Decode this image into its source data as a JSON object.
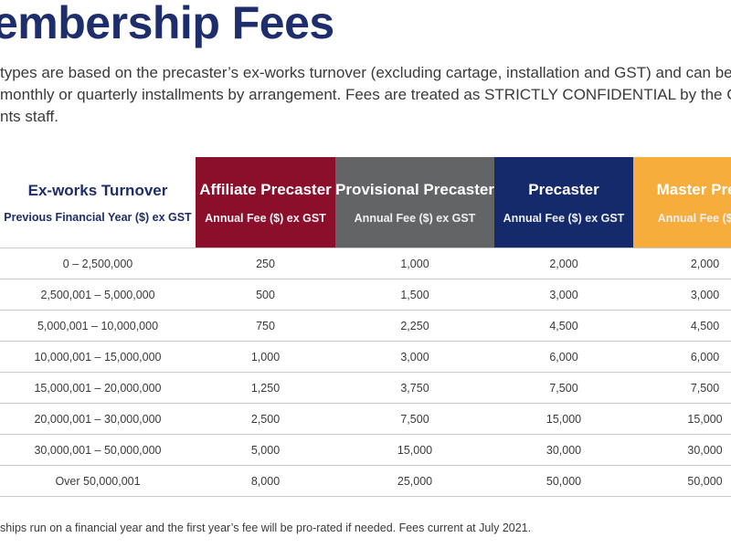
{
  "title": "embership Fees",
  "intro": {
    "line1": "types are based on the precaster’s ex-works turnover (excluding cartage, installation and GST) and can be p",
    "line2": "monthly or quarterly installments by arrangement. Fees are treated as STRICTLY CONFIDENTIAL by the CEO",
    "line3": "nts staff."
  },
  "table": {
    "headers": [
      {
        "title": "Ex-works Turnover",
        "sub": "Previous Financial Year ($) ex GST",
        "color": "#ffffff"
      },
      {
        "title": "Affiliate Precaster",
        "sub": "Annual Fee ($) ex GST",
        "color": "#8b0e2b"
      },
      {
        "title": "Provisional Precaster",
        "sub": "Annual Fee ($) ex GST",
        "color": "#636466"
      },
      {
        "title": "Precaster",
        "sub": "Annual Fee ($) ex GST",
        "color": "#142a6a"
      },
      {
        "title": "Master Preca",
        "sub": "Annual Fee ($) ex",
        "color": "#f7ad3c"
      }
    ],
    "rows": [
      [
        "0 – 2,500,000",
        "250",
        "1,000",
        "2,000",
        "2,000"
      ],
      [
        "2,500,001 – 5,000,000",
        "500",
        "1,500",
        "3,000",
        "3,000"
      ],
      [
        "5,000,001 – 10,000,000",
        "750",
        "2,250",
        "4,500",
        "4,500"
      ],
      [
        "10,000,001 – 15,000,000",
        "1,000",
        "3,000",
        "6,000",
        "6,000"
      ],
      [
        "15,000,001 – 20,000,000",
        "1,250",
        "3,750",
        "7,500",
        "7,500"
      ],
      [
        "20,000,001 – 30,000,000",
        "2,500",
        "7,500",
        "15,000",
        "15,000"
      ],
      [
        "30,000,001 – 50,000,000",
        "5,000",
        "15,000",
        "30,000",
        "30,000"
      ],
      [
        "Over 50,000,001",
        "8,000",
        "25,000",
        "50,000",
        "50,000"
      ]
    ]
  },
  "footnote": "ships run on a financial year and the first year’s fee will be pro-rated if needed. Fees current at July 2021."
}
